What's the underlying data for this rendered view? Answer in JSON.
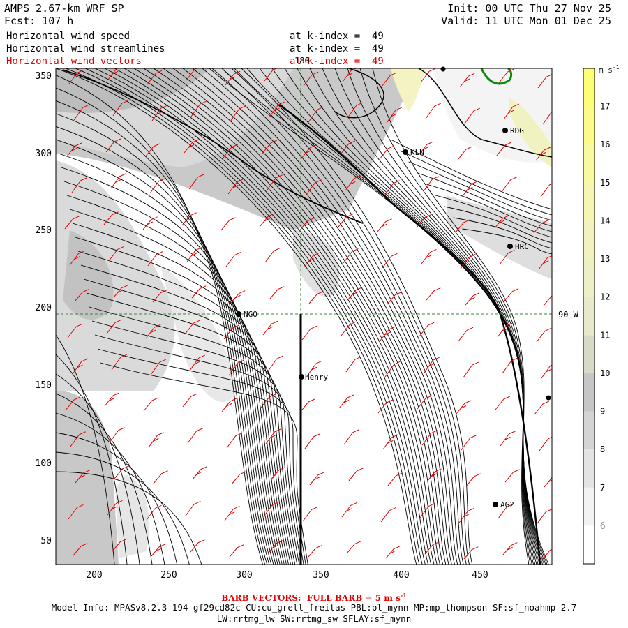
{
  "header": {
    "model": "AMPS 2.67-km WRF SP",
    "fcst": "Fcst: 107 h",
    "init": "Init: 00 UTC Thu 27 Nov 25",
    "valid": "Valid: 11 UTC Mon 01 Dec 25"
  },
  "fields": [
    {
      "label": "Horizontal wind speed",
      "level": "at k-index =  49"
    },
    {
      "label": "Horizontal wind streamlines",
      "level": "at k-index =  49"
    },
    {
      "label": "Horizontal wind vectors",
      "level": "at k-index =  49"
    }
  ],
  "x_ticks": [
    "200",
    "250",
    "300",
    "350",
    "400",
    "450"
  ],
  "y_ticks": [
    "50",
    "100",
    "150",
    "200",
    "250",
    "300",
    "350"
  ],
  "grid_labels": {
    "meridian": "180",
    "parallel": "90 W"
  },
  "stations": [
    "RDG",
    "KLN",
    "HRC",
    "NGO",
    "Henry",
    "AG2"
  ],
  "colorbar": {
    "unit": "m s",
    "unit_exp": "-1",
    "levels": [
      "6",
      "7",
      "8",
      "9",
      "10",
      "11",
      "12",
      "13",
      "14",
      "15",
      "16",
      "17"
    ],
    "colors": [
      "#ffffff",
      "#f2f2f2",
      "#e3e3e3",
      "#d4d4d4",
      "#c6c6c6",
      "#d9d9c8",
      "#e8e8cc",
      "#eeeec7",
      "#f2f2bf",
      "#f6f6b2",
      "#f9f9a0",
      "#fbfb8a",
      "#fdfd77"
    ]
  },
  "footer": {
    "barb_title": "BARB VECTORS:  FULL BARB = 5 m s",
    "barb_exp": "-1",
    "model_info": "Model Info: MPASv8.2.3-194-gf29cd82c CU:cu_grell_freitas PBL:bl_mynn MP:mp_thompson SF:sf_noahmp 2.7",
    "physics": "LW:rrtmg_lw SW:rrtmg_sw SFLAY:sf_mynn"
  }
}
